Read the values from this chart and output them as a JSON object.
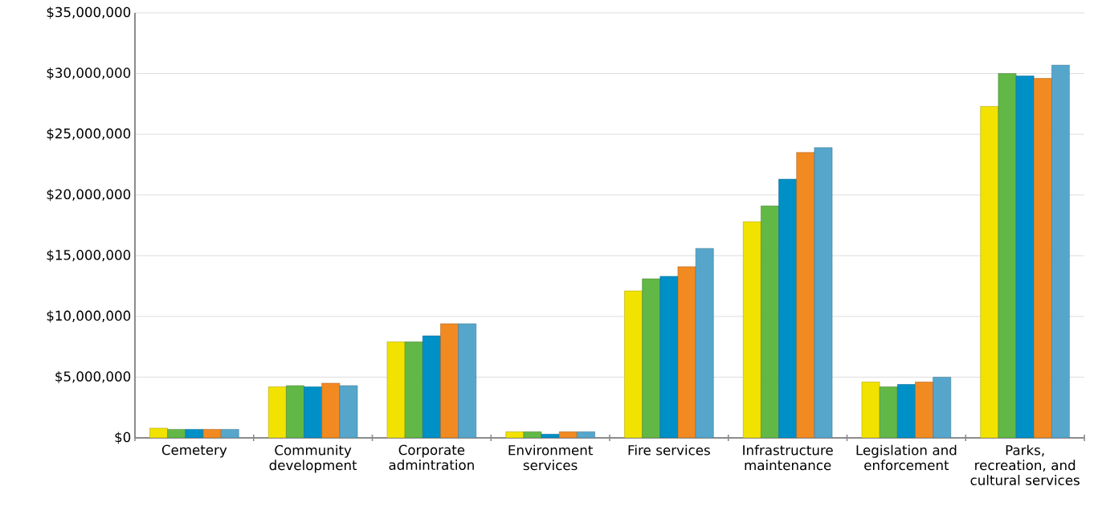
{
  "chart_data": {
    "type": "bar",
    "categories": [
      "Cemetery",
      "Community development",
      "Corporate admintration",
      "Environment services",
      "Fire services",
      "Infrastructure maintenance",
      "Legislation and enforcement",
      "Parks, recreation, and cultural services"
    ],
    "series": [
      {
        "color": "#f2e200",
        "values": [
          800000,
          4200000,
          7900000,
          500000,
          12100000,
          17800000,
          4600000,
          27300000
        ]
      },
      {
        "color": "#62b846",
        "values": [
          700000,
          4300000,
          7900000,
          500000,
          13100000,
          19100000,
          4200000,
          30000000
        ]
      },
      {
        "color": "#0090c8",
        "values": [
          700000,
          4200000,
          8400000,
          300000,
          13300000,
          21300000,
          4400000,
          29800000
        ]
      },
      {
        "color": "#f28a22",
        "values": [
          700000,
          4500000,
          9400000,
          500000,
          14100000,
          23500000,
          4600000,
          29600000
        ]
      },
      {
        "color": "#56a6cc",
        "values": [
          700000,
          4300000,
          9400000,
          500000,
          15600000,
          23900000,
          5000000,
          30700000
        ]
      }
    ],
    "ylim": [
      0,
      35000000
    ],
    "yticks": [
      {
        "value": 0,
        "label": "$0"
      },
      {
        "value": 5000000,
        "label": "$5,000,000"
      },
      {
        "value": 10000000,
        "label": "$10,000,000"
      },
      {
        "value": 15000000,
        "label": "$15,000,000"
      },
      {
        "value": 20000000,
        "label": "$20,000,000"
      },
      {
        "value": 25000000,
        "label": "$25,000,000"
      },
      {
        "value": 30000000,
        "label": "$30,000,000"
      },
      {
        "value": 35000000,
        "label": "$35,000,000"
      }
    ],
    "grid": "y"
  }
}
